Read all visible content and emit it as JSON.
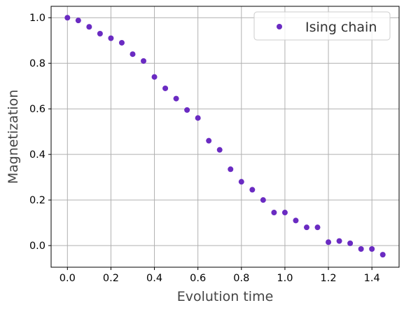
{
  "chart_data": {
    "type": "scatter",
    "xlabel": "Evolution time",
    "ylabel": "Magnetization",
    "xlim": [
      -0.075,
      1.525
    ],
    "ylim": [
      -0.095,
      1.05
    ],
    "xticks": [
      "0.0",
      "0.2",
      "0.4",
      "0.6",
      "0.8",
      "1.0",
      "1.2",
      "1.4"
    ],
    "yticks": [
      "0.0",
      "0.2",
      "0.4",
      "0.6",
      "0.8",
      "1.0"
    ],
    "grid": true,
    "legend_position": "top-right",
    "series": [
      {
        "name": "Ising chain",
        "color": "#6a2bc2",
        "marker": "circle",
        "x": [
          0.0,
          0.05,
          0.1,
          0.15,
          0.2,
          0.25,
          0.3,
          0.35,
          0.4,
          0.45,
          0.5,
          0.55,
          0.6,
          0.65,
          0.7,
          0.75,
          0.8,
          0.85,
          0.9,
          0.95,
          1.0,
          1.05,
          1.1,
          1.15,
          1.2,
          1.25,
          1.3,
          1.35,
          1.4,
          1.45
        ],
        "y": [
          1.0,
          0.988,
          0.96,
          0.93,
          0.91,
          0.89,
          0.84,
          0.81,
          0.74,
          0.69,
          0.645,
          0.595,
          0.56,
          0.46,
          0.42,
          0.335,
          0.28,
          0.245,
          0.2,
          0.145,
          0.145,
          0.11,
          0.08,
          0.08,
          0.015,
          0.02,
          0.01,
          -0.015,
          -0.015,
          -0.04
        ]
      }
    ]
  }
}
